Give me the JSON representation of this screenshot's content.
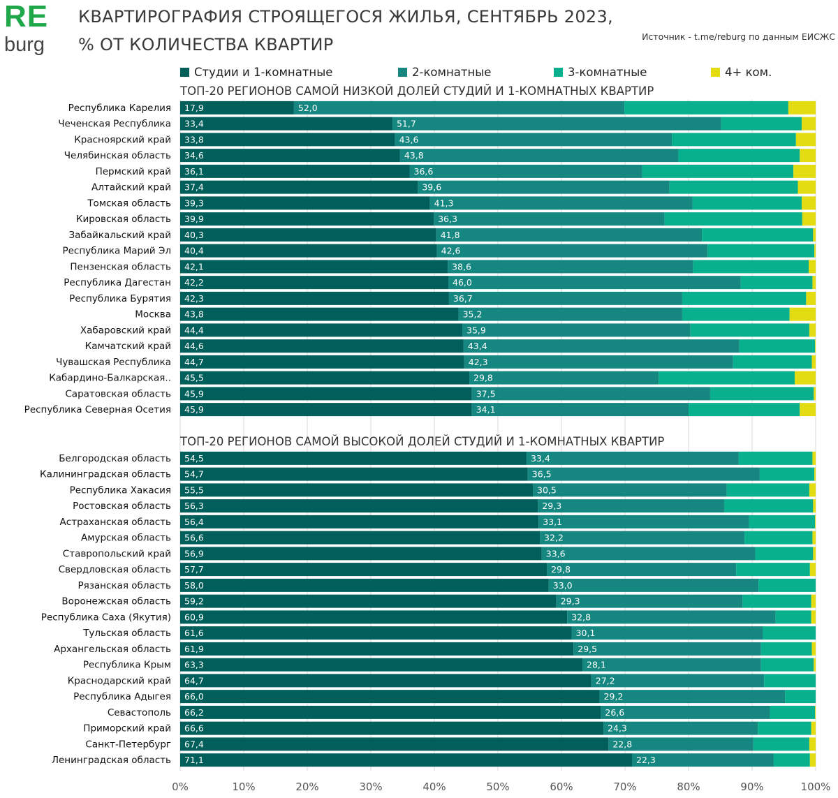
{
  "logo": {
    "text_re": "RE",
    "text_burg": "burg"
  },
  "header": {
    "title_line1": "КВАРТИРОГРАФИЯ СТРОЯЩЕГОСЯ ЖИЛЬЯ, СЕНТЯБРЬ 2023,",
    "title_line2": "% ОТ КОЛИЧЕСТВА КВАРТИР",
    "source": "Источник - t.me/reburg по данным ЕИСЖС"
  },
  "colors": {
    "brand_green": "#1fa84a",
    "studio_1room": "#005f5a",
    "room_2": "#158680",
    "room_3": "#08b08e",
    "room_4plus": "#e4dc12",
    "grid": "#d9d9d9"
  },
  "chart_data": {
    "type": "bar",
    "orientation": "horizontal",
    "stacked": true,
    "title": "КВАРТИРОГРАФИЯ СТРОЯЩЕГОСЯ ЖИЛЬЯ, СЕНТЯБРЬ 2023, % ОТ КОЛИЧЕСТВА КВАРТИР",
    "series_names": [
      "Студии и 1-комнатные",
      "2-комнатные",
      "3-комнатные",
      "4+ ком."
    ],
    "xlim": [
      0,
      100
    ],
    "xticks": [
      0,
      10,
      20,
      30,
      40,
      50,
      60,
      70,
      80,
      90,
      100
    ],
    "xtick_labels": [
      "0%",
      "10%",
      "20%",
      "30%",
      "40%",
      "50%",
      "60%",
      "70%",
      "80%",
      "90%",
      "100%"
    ],
    "grid": true,
    "legend_position": "top",
    "panels": [
      {
        "title": "ТОП-20 РЕГИОНОВ САМОЙ НИЗКОЙ ДОЛЕЙ СТУДИЙ И 1-КОМНАТНЫХ КВАРТИР",
        "categories": [
          "Республика Карелия",
          "Чеченская Республика",
          "Красноярский край",
          "Челябинская область",
          "Пермский край",
          "Алтайский край",
          "Томская область",
          "Кировская область",
          "Забайкальский край",
          "Республика Марий Эл",
          "Пензенская область",
          "Республика Дагестан",
          "Республика Бурятия",
          "Москва",
          "Хабаровский край",
          "Камчатский край",
          "Чувашская Республика",
          "Кабардино-Балкарская..",
          "Саратовская область",
          "Республика Северная Осетия"
        ],
        "series": [
          {
            "name": "Студии и 1-комнатные",
            "values": [
              17.9,
              33.4,
              33.8,
              34.6,
              36.1,
              37.4,
              39.3,
              39.9,
              40.3,
              40.4,
              42.1,
              42.2,
              42.3,
              43.8,
              44.4,
              44.6,
              44.7,
              45.5,
              45.9,
              45.9
            ]
          },
          {
            "name": "2-комнатные",
            "values": [
              52.0,
              51.7,
              43.6,
              43.8,
              36.6,
              39.6,
              41.3,
              36.3,
              41.8,
              42.6,
              38.6,
              46.0,
              36.7,
              35.2,
              35.9,
              43.4,
              42.3,
              29.8,
              37.5,
              34.1
            ]
          },
          {
            "name": "3-комнатные",
            "values": [
              25.8,
              12.7,
              19.5,
              19.1,
              23.8,
              20.2,
              17.2,
              21.7,
              17.5,
              16.8,
              18.2,
              11.3,
              19.5,
              16.9,
              18.7,
              11.9,
              12.4,
              21.4,
              16.3,
              17.5
            ]
          },
          {
            "name": "4+ ком.",
            "values": [
              4.3,
              2.2,
              3.1,
              2.5,
              3.5,
              2.8,
              2.2,
              2.1,
              0.4,
              0.2,
              1.1,
              0.5,
              1.5,
              4.1,
              1.0,
              0.1,
              0.6,
              3.3,
              0.3,
              2.5
            ]
          }
        ]
      },
      {
        "title": "ТОП-20 РЕГИОНОВ САМОЙ ВЫСОКОЙ ДОЛЕЙ СТУДИЙ И 1-КОМНАТНЫХ КВАРТИР",
        "categories": [
          "Белгородская область",
          "Калининградская область",
          "Республика Хакасия",
          "Ростовская область",
          "Астраханская область",
          "Амурская область",
          "Ставропольский край",
          "Свердловская область",
          "Рязанская область",
          "Воронежская область",
          "Республика Саха (Якутия)",
          "Тульская область",
          "Архангельская область",
          "Республика Крым",
          "Краснодарский край",
          "Республика Адыгея",
          "Севастополь",
          "Приморский край",
          "Санкт-Петербург",
          "Ленинградская область"
        ],
        "series": [
          {
            "name": "Студии и 1-комнатные",
            "values": [
              54.5,
              54.7,
              55.5,
              56.3,
              56.4,
              56.6,
              56.9,
              57.7,
              58.0,
              59.2,
              60.9,
              61.6,
              61.9,
              63.3,
              64.7,
              66.0,
              66.2,
              66.6,
              67.4,
              71.1
            ]
          },
          {
            "name": "2-комнатные",
            "values": [
              33.4,
              36.5,
              30.5,
              29.3,
              33.1,
              32.2,
              33.6,
              29.8,
              33.0,
              29.3,
              32.8,
              30.1,
              29.5,
              28.1,
              27.2,
              29.2,
              26.6,
              24.3,
              22.8,
              22.3
            ]
          },
          {
            "name": "3-комнатные",
            "values": [
              11.6,
              8.6,
              13.0,
              14.0,
              10.4,
              10.7,
              9.1,
              11.6,
              9.0,
              10.8,
              5.6,
              8.3,
              8.0,
              8.3,
              8.1,
              4.8,
              7.1,
              8.4,
              8.8,
              5.7
            ]
          },
          {
            "name": "4+ ком.",
            "values": [
              0.5,
              0.2,
              1.0,
              0.4,
              0.1,
              0.5,
              0.4,
              0.9,
              0.0,
              0.7,
              0.7,
              0.0,
              0.6,
              0.3,
              0.0,
              0.0,
              0.1,
              0.7,
              1.0,
              0.9
            ]
          }
        ]
      }
    ]
  }
}
